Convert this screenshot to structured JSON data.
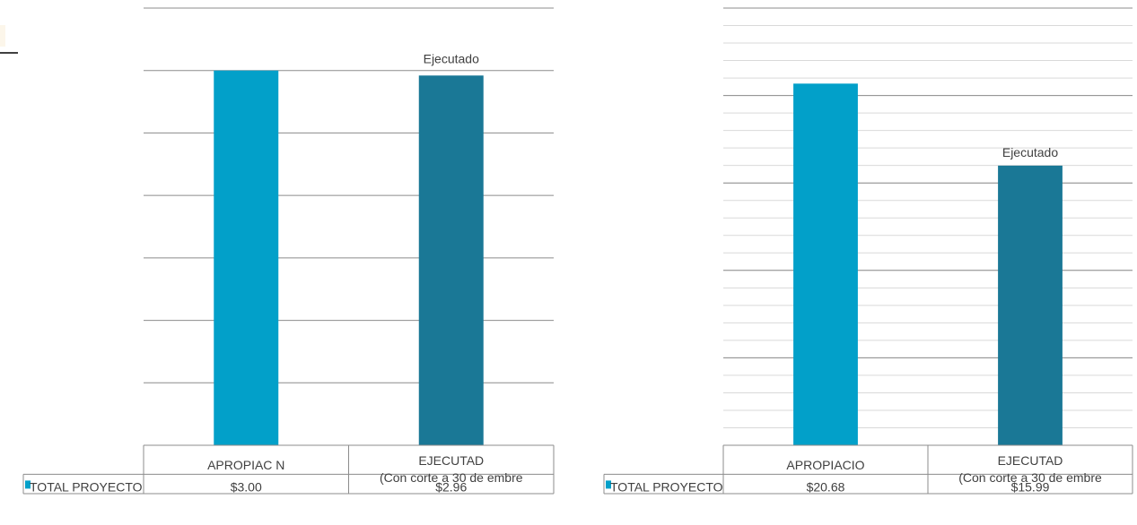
{
  "colors": {
    "series1": "#02A0C9",
    "series2": "#1A7896",
    "grid_major": "#8c8c8c",
    "grid_minor": "#d9d9d9",
    "text": "#404040"
  },
  "chart_data": [
    {
      "type": "bar",
      "categories": [
        "APROPIAC N",
        "EJECUTAD"
      ],
      "category_sublabels": [
        "",
        "(Con corte a 30 de embre"
      ],
      "series": [
        {
          "name": "TOTAL PROYECTO",
          "values": [
            3.0,
            2.96
          ]
        }
      ],
      "table_values": [
        "$3.00",
        "$2.96"
      ],
      "data_labels": [
        "",
        "Ejecutado"
      ],
      "ylim": [
        0,
        3.5
      ],
      "ytick_step": 0.5,
      "minor_gridlines": false,
      "grid": true,
      "legend": "data-table"
    },
    {
      "type": "bar",
      "categories": [
        "APROPIACIO",
        "EJECUTAD"
      ],
      "category_sublabels": [
        "",
        "(Con corte a 30 de embre"
      ],
      "series": [
        {
          "name": "TOTAL PROYECTO",
          "values": [
            20.68,
            15.99
          ]
        }
      ],
      "table_values": [
        "$20.68",
        "$15.99"
      ],
      "data_labels": [
        "",
        "Ejecutado"
      ],
      "ylim": [
        0,
        25
      ],
      "ytick_step": 5,
      "minor_gridlines": true,
      "grid": true,
      "legend": "data-table"
    }
  ]
}
